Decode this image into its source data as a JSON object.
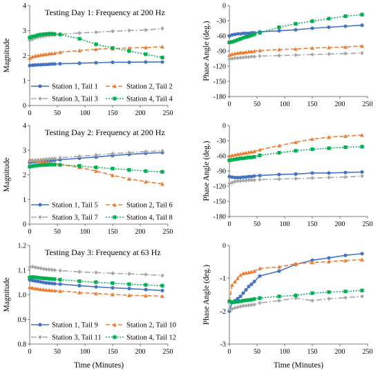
{
  "figure": {
    "xlabel_left": "Time  (Minutes)",
    "xlabel_right": "Time  (Minutes)"
  },
  "colors": {
    "station1": "#4472c4",
    "station2": "#ed7d31",
    "station3": "#a5a5a5",
    "station4": "#00b050"
  },
  "chart_data": [
    {
      "type": "line",
      "title": "Testing Day 1: Frequency at 200 Hz",
      "xlabel": "",
      "ylabel": "Magnitude",
      "xlim": [
        0,
        250
      ],
      "ylim": [
        0,
        4
      ],
      "xticks": [
        0,
        50,
        100,
        150,
        200,
        250
      ],
      "yticks": [
        0,
        1,
        2,
        3,
        4
      ],
      "legend": "bottom",
      "series": [
        {
          "name": "Station 1, Tail 1",
          "x": [
            0,
            5,
            10,
            15,
            20,
            25,
            30,
            35,
            40,
            45,
            55,
            90,
            120,
            150,
            180,
            210,
            240
          ],
          "y": [
            1.6,
            1.61,
            1.62,
            1.63,
            1.63,
            1.64,
            1.64,
            1.65,
            1.66,
            1.66,
            1.67,
            1.69,
            1.71,
            1.73,
            1.73,
            1.74,
            1.74
          ]
        },
        {
          "name": "Station 2, Tail 2",
          "x": [
            0,
            5,
            10,
            15,
            20,
            25,
            30,
            35,
            40,
            45,
            55,
            90,
            120,
            150,
            180,
            210,
            240
          ],
          "y": [
            1.9,
            1.95,
            1.98,
            2.0,
            2.02,
            2.04,
            2.05,
            2.07,
            2.08,
            2.09,
            2.13,
            2.2,
            2.25,
            2.28,
            2.3,
            2.32,
            2.35
          ]
        },
        {
          "name": "Station 3, Tail 3",
          "x": [
            0,
            5,
            10,
            15,
            20,
            25,
            30,
            35,
            40,
            45,
            55,
            90,
            120,
            150,
            180,
            210,
            240
          ],
          "y": [
            2.6,
            2.65,
            2.7,
            2.73,
            2.75,
            2.77,
            2.79,
            2.8,
            2.81,
            2.82,
            2.85,
            2.9,
            2.93,
            2.97,
            3.0,
            3.02,
            3.08
          ]
        },
        {
          "name": "Station 4, Tail 4",
          "x": [
            0,
            5,
            10,
            15,
            20,
            25,
            30,
            35,
            40,
            45,
            55,
            90,
            120,
            150,
            180,
            210,
            240
          ],
          "y": [
            2.72,
            2.76,
            2.78,
            2.82,
            2.84,
            2.85,
            2.86,
            2.87,
            2.87,
            2.86,
            2.84,
            2.67,
            2.45,
            2.3,
            2.18,
            2.05,
            1.92
          ]
        }
      ]
    },
    {
      "type": "line",
      "title": "",
      "xlabel": "",
      "ylabel": "Phase Angle (deg.)",
      "xlim": [
        0,
        250
      ],
      "ylim": [
        -180,
        0
      ],
      "xticks": [
        0,
        50,
        100,
        150,
        200,
        250
      ],
      "yticks": [
        0,
        -30,
        -60,
        -90,
        -120,
        -150,
        -180
      ],
      "series": [
        {
          "name": "Station 1, Tail 1",
          "x": [
            0,
            5,
            10,
            15,
            20,
            25,
            30,
            35,
            40,
            45,
            55,
            90,
            120,
            150,
            180,
            210,
            240
          ],
          "y": [
            -60,
            -58,
            -57,
            -56,
            -56,
            -55,
            -55,
            -55,
            -54,
            -54,
            -52,
            -50,
            -48,
            -45,
            -43,
            -41,
            -39
          ]
        },
        {
          "name": "Station 2, Tail 2",
          "x": [
            0,
            5,
            10,
            15,
            20,
            25,
            30,
            35,
            40,
            45,
            55,
            90,
            120,
            150,
            180,
            210,
            240
          ],
          "y": [
            -98,
            -96,
            -95,
            -94,
            -93,
            -93,
            -92,
            -91,
            -91,
            -90,
            -89,
            -87,
            -86,
            -84,
            -83,
            -82,
            -80
          ]
        },
        {
          "name": "Station 3, Tail 3",
          "x": [
            0,
            5,
            10,
            15,
            20,
            25,
            30,
            35,
            40,
            45,
            55,
            90,
            120,
            150,
            180,
            210,
            240
          ],
          "y": [
            -106,
            -105,
            -104,
            -104,
            -103,
            -103,
            -102,
            -102,
            -101,
            -101,
            -100,
            -99,
            -98,
            -97,
            -96,
            -95,
            -94
          ]
        },
        {
          "name": "Station 4, Tail 4",
          "x": [
            0,
            5,
            10,
            15,
            20,
            25,
            30,
            35,
            40,
            45,
            55,
            90,
            120,
            150,
            180,
            210,
            240
          ],
          "y": [
            -73,
            -72,
            -70,
            -68,
            -66,
            -64,
            -62,
            -61,
            -59,
            -57,
            -54,
            -43,
            -36,
            -31,
            -26,
            -21,
            -18
          ]
        }
      ]
    },
    {
      "type": "line",
      "title": "Testing Day 2: Frequency at 200 Hz",
      "xlabel": "",
      "ylabel": "Magnitude",
      "xlim": [
        0,
        250
      ],
      "ylim": [
        0,
        4
      ],
      "xticks": [
        0,
        50,
        100,
        150,
        200,
        250
      ],
      "yticks": [
        0,
        1,
        2,
        3,
        4
      ],
      "legend": "bottom",
      "series": [
        {
          "name": "Station 1, Tail 5",
          "x": [
            0,
            5,
            10,
            15,
            20,
            25,
            30,
            35,
            40,
            45,
            55,
            90,
            120,
            150,
            180,
            210,
            240
          ],
          "y": [
            2.5,
            2.52,
            2.53,
            2.54,
            2.55,
            2.56,
            2.56,
            2.57,
            2.58,
            2.59,
            2.61,
            2.67,
            2.72,
            2.78,
            2.83,
            2.87,
            2.9
          ]
        },
        {
          "name": "Station 2, Tail 6",
          "x": [
            0,
            5,
            10,
            15,
            20,
            25,
            30,
            35,
            40,
            45,
            55,
            90,
            120,
            150,
            180,
            210,
            240
          ],
          "y": [
            2.62,
            2.6,
            2.58,
            2.56,
            2.54,
            2.52,
            2.5,
            2.48,
            2.47,
            2.45,
            2.42,
            2.3,
            2.15,
            1.98,
            1.83,
            1.72,
            1.63
          ]
        },
        {
          "name": "Station 3, Tail 7",
          "x": [
            0,
            5,
            10,
            15,
            20,
            25,
            30,
            35,
            40,
            45,
            55,
            90,
            120,
            150,
            180,
            210,
            240
          ],
          "y": [
            2.55,
            2.57,
            2.59,
            2.6,
            2.61,
            2.62,
            2.63,
            2.64,
            2.65,
            2.66,
            2.69,
            2.75,
            2.8,
            2.86,
            2.9,
            2.94,
            2.97
          ]
        },
        {
          "name": "Station 4, Tail 8",
          "x": [
            0,
            5,
            10,
            15,
            20,
            25,
            30,
            35,
            40,
            45,
            55,
            90,
            120,
            150,
            180,
            210,
            240
          ],
          "y": [
            2.33,
            2.35,
            2.37,
            2.38,
            2.39,
            2.4,
            2.4,
            2.41,
            2.41,
            2.41,
            2.4,
            2.36,
            2.3,
            2.25,
            2.2,
            2.15,
            2.12
          ]
        }
      ]
    },
    {
      "type": "line",
      "title": "",
      "xlabel": "",
      "ylabel": "Phase Angle (deg.)",
      "xlim": [
        0,
        250
      ],
      "ylim": [
        -180,
        0
      ],
      "xticks": [
        0,
        50,
        100,
        150,
        200,
        250
      ],
      "yticks": [
        0,
        -30,
        -60,
        -90,
        -120,
        -150,
        -180
      ],
      "series": [
        {
          "name": "Station 1, Tail 5",
          "x": [
            0,
            5,
            10,
            15,
            20,
            25,
            30,
            35,
            40,
            45,
            55,
            90,
            120,
            150,
            180,
            210,
            240
          ],
          "y": [
            -101,
            -102,
            -103,
            -103,
            -103,
            -102,
            -102,
            -101,
            -101,
            -100,
            -99,
            -97,
            -96,
            -94,
            -94,
            -93,
            -92
          ]
        },
        {
          "name": "Station 2, Tail 6",
          "x": [
            0,
            5,
            10,
            15,
            20,
            25,
            30,
            35,
            40,
            45,
            55,
            90,
            120,
            150,
            180,
            210,
            240
          ],
          "y": [
            -60,
            -59,
            -58,
            -57,
            -56,
            -55,
            -54,
            -53,
            -52,
            -51,
            -48,
            -40,
            -33,
            -27,
            -23,
            -21,
            -19
          ]
        },
        {
          "name": "Station 3, Tail 7",
          "x": [
            0,
            5,
            10,
            15,
            20,
            25,
            30,
            35,
            40,
            45,
            55,
            90,
            120,
            150,
            180,
            210,
            240
          ],
          "y": [
            -115,
            -113,
            -111,
            -110,
            -110,
            -109,
            -109,
            -108,
            -108,
            -108,
            -107,
            -106,
            -105,
            -104,
            -103,
            -102,
            -100
          ]
        },
        {
          "name": "Station 4, Tail 8",
          "x": [
            0,
            5,
            10,
            15,
            20,
            25,
            30,
            35,
            40,
            45,
            55,
            90,
            120,
            150,
            180,
            210,
            240
          ],
          "y": [
            -69,
            -68,
            -67,
            -66,
            -65,
            -65,
            -64,
            -63,
            -63,
            -62,
            -59,
            -54,
            -50,
            -47,
            -45,
            -43,
            -42
          ]
        }
      ]
    },
    {
      "type": "line",
      "title": "Testing Day 3: Frequency at 63 Hz",
      "xlabel": "",
      "ylabel": "Magnitude",
      "xlim": [
        0,
        250
      ],
      "ylim": [
        0.8,
        1.2
      ],
      "xticks": [
        0,
        50,
        100,
        150,
        200,
        250
      ],
      "yticks": [
        0.8,
        0.9,
        1.0,
        1.1,
        1.2
      ],
      "legend": "bottom",
      "series": [
        {
          "name": "Station 1, Tail 9",
          "x": [
            0,
            5,
            10,
            15,
            20,
            25,
            30,
            35,
            40,
            45,
            55,
            90,
            120,
            150,
            180,
            210,
            240
          ],
          "y": [
            1.06,
            1.058,
            1.056,
            1.054,
            1.052,
            1.05,
            1.048,
            1.047,
            1.046,
            1.045,
            1.043,
            1.037,
            1.032,
            1.028,
            1.025,
            1.021,
            1.017
          ]
        },
        {
          "name": "Station 2, Tail 10",
          "x": [
            0,
            5,
            10,
            15,
            20,
            25,
            30,
            35,
            40,
            45,
            55,
            90,
            120,
            150,
            180,
            210,
            240
          ],
          "y": [
            1.03,
            1.028,
            1.026,
            1.024,
            1.022,
            1.021,
            1.02,
            1.019,
            1.018,
            1.017,
            1.015,
            1.009,
            1.005,
            1.001,
            0.998,
            0.996,
            0.994
          ]
        },
        {
          "name": "Station 3, Tail 11",
          "x": [
            0,
            5,
            10,
            15,
            20,
            25,
            30,
            35,
            40,
            45,
            55,
            90,
            120,
            150,
            180,
            210,
            240
          ],
          "y": [
            1.112,
            1.114,
            1.111,
            1.109,
            1.107,
            1.105,
            1.103,
            1.102,
            1.101,
            1.1,
            1.098,
            1.093,
            1.09,
            1.087,
            1.085,
            1.082,
            1.078
          ]
        },
        {
          "name": "Station 4, Tail 12",
          "x": [
            0,
            5,
            10,
            15,
            20,
            25,
            30,
            35,
            40,
            45,
            55,
            90,
            120,
            150,
            180,
            210,
            240
          ],
          "y": [
            1.07,
            1.072,
            1.071,
            1.069,
            1.068,
            1.067,
            1.066,
            1.065,
            1.064,
            1.063,
            1.061,
            1.055,
            1.051,
            1.047,
            1.043,
            1.04,
            1.037
          ]
        }
      ]
    },
    {
      "type": "line",
      "title": "",
      "xlabel": "",
      "ylabel": "Phase Angle (deg.)",
      "xlim": [
        0,
        250
      ],
      "ylim": [
        -3,
        0
      ],
      "xticks": [
        0,
        50,
        100,
        150,
        200,
        250
      ],
      "yticks": [
        0,
        -1,
        -2,
        -3
      ],
      "series": [
        {
          "name": "Station 1, Tail 9",
          "x": [
            0,
            5,
            10,
            15,
            20,
            25,
            30,
            35,
            40,
            45,
            55,
            90,
            120,
            150,
            180,
            210,
            240
          ],
          "y": [
            -2.0,
            -1.72,
            -1.68,
            -1.62,
            -1.55,
            -1.45,
            -1.35,
            -1.25,
            -1.18,
            -1.1,
            -0.93,
            -0.78,
            -0.58,
            -0.45,
            -0.38,
            -0.3,
            -0.25
          ]
        },
        {
          "name": "Station 2, Tail 10",
          "x": [
            0,
            5,
            10,
            15,
            20,
            25,
            30,
            35,
            40,
            45,
            55,
            90,
            120,
            150,
            180,
            210,
            240
          ],
          "y": [
            -1.7,
            -1.2,
            -1.1,
            -1.0,
            -0.9,
            -0.85,
            -0.83,
            -0.82,
            -0.8,
            -0.78,
            -0.7,
            -0.65,
            -0.56,
            -0.52,
            -0.49,
            -0.46,
            -0.43
          ]
        },
        {
          "name": "Station 3, Tail 11",
          "x": [
            0,
            5,
            10,
            15,
            20,
            25,
            30,
            35,
            40,
            45,
            55,
            90,
            120,
            150,
            180,
            210,
            240
          ],
          "y": [
            -1.95,
            -1.93,
            -1.9,
            -1.88,
            -1.86,
            -1.84,
            -1.83,
            -1.82,
            -1.81,
            -1.8,
            -1.75,
            -1.68,
            -1.6,
            -1.68,
            -1.62,
            -1.59,
            -1.55
          ]
        },
        {
          "name": "Station 4, Tail 12",
          "x": [
            0,
            5,
            10,
            15,
            20,
            25,
            30,
            35,
            40,
            45,
            55,
            90,
            120,
            150,
            180,
            210,
            240
          ],
          "y": [
            -1.7,
            -1.73,
            -1.72,
            -1.71,
            -1.7,
            -1.68,
            -1.67,
            -1.66,
            -1.65,
            -1.63,
            -1.6,
            -1.55,
            -1.52,
            -1.45,
            -1.42,
            -1.4,
            -1.37
          ]
        }
      ]
    }
  ]
}
